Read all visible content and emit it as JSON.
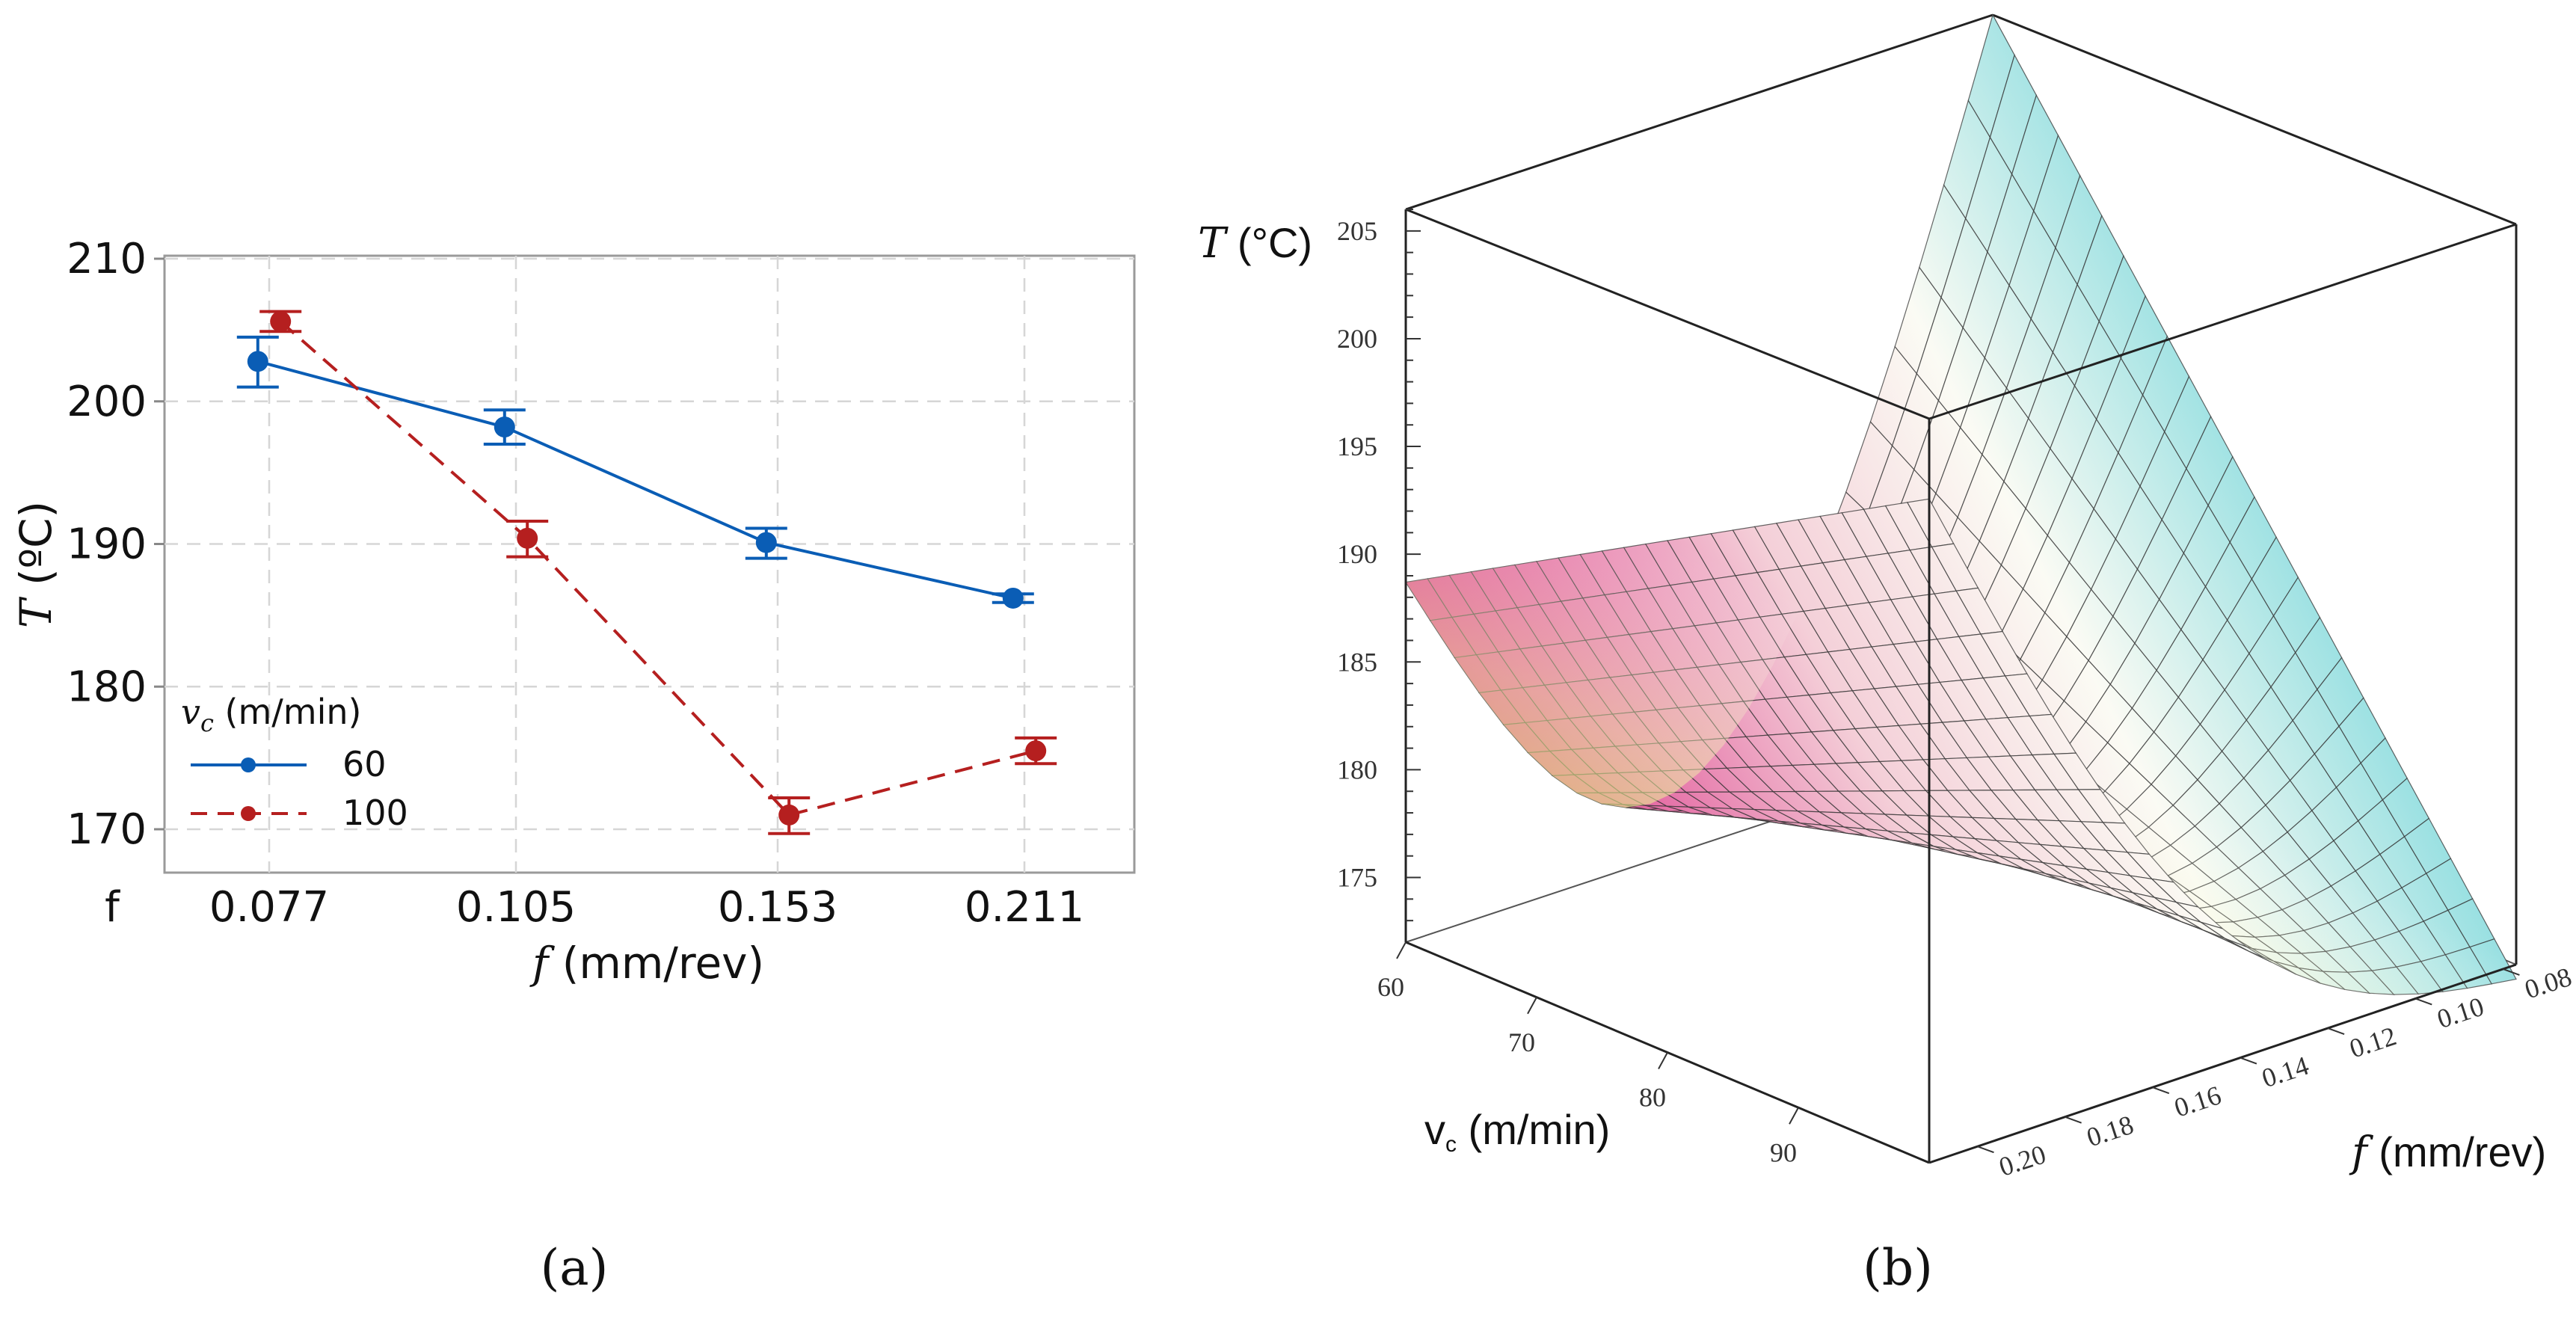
{
  "panel_a": {
    "label": "(a)",
    "chart_data": {
      "type": "line",
      "xlabel": "f (mm/rev)",
      "ylabel": "T (ºC)",
      "x_axis_prefix": "f",
      "categories": [
        "0.077",
        "0.105",
        "0.153",
        "0.211"
      ],
      "ylim": [
        167,
        210
      ],
      "yticks": [
        170,
        180,
        190,
        200,
        210
      ],
      "grid": true,
      "legend": {
        "title": "vc (m/min)",
        "position": "bottom-left"
      },
      "series": [
        {
          "name": "60",
          "color": "#0a5db5",
          "dash": "solid",
          "values": [
            202.8,
            198.2,
            190.1,
            186.2
          ],
          "err_low": [
            201.0,
            197.0,
            189.0,
            185.9
          ],
          "err_high": [
            204.5,
            199.4,
            191.1,
            186.5
          ]
        },
        {
          "name": "100",
          "color": "#b51f1f",
          "dash": "dashed",
          "values": [
            205.6,
            190.4,
            171.0,
            175.5
          ],
          "err_low": [
            204.9,
            189.1,
            169.7,
            174.6
          ],
          "err_high": [
            206.3,
            191.6,
            172.2,
            176.4
          ]
        }
      ]
    }
  },
  "panel_b": {
    "label": "(b)",
    "chart_data": {
      "type": "surface",
      "zlabel": "T (°C)",
      "xlabel": "vc (m/min)",
      "ylabel": "f (mm/rev)",
      "vc_ticks": [
        60,
        70,
        80,
        90
      ],
      "f_ticks": [
        "0.08",
        "0.10",
        "0.12",
        "0.14",
        "0.16",
        "0.18",
        "0.20"
      ],
      "z_ticks": [
        175,
        180,
        185,
        190,
        195,
        200,
        205
      ],
      "vc_range": [
        60,
        100
      ],
      "f_range": [
        0.077,
        0.211
      ],
      "z_range": [
        172,
        206
      ],
      "corner_values": {
        "vc60_f0077": 188.7,
        "vc100_f0211": 171.5,
        "vc60_f0211": 206.0,
        "vc100_f0077": 202.8
      },
      "minimum_region": "vc≈65, f≈0.12",
      "colors": [
        "#d9237f",
        "#e6f0a0",
        "#c8e61e",
        "#2ec8cf",
        "#9aa4e0"
      ]
    }
  }
}
